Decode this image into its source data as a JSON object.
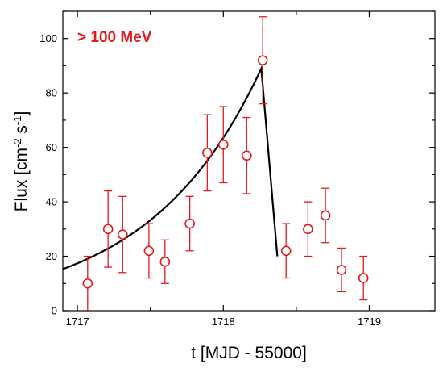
{
  "chart_data": {
    "type": "scatter",
    "title": "",
    "annotation": "> 100 MeV",
    "xlabel": "t [MJD - 55000]",
    "ylabel_parts": {
      "base": "Flux [cm",
      "exp1": "-2",
      "mid": " s",
      "exp2": "-1",
      "end": "]"
    },
    "xlim": [
      1716.9,
      1719.45
    ],
    "ylim": [
      0,
      110
    ],
    "x_ticks": [
      "1717",
      "1718",
      "1719"
    ],
    "x_tick_values": [
      1717,
      1718,
      1719
    ],
    "x_minor_step": 0.5,
    "y_ticks": [
      "0",
      "20",
      "40",
      "60",
      "80",
      "100"
    ],
    "y_tick_values": [
      0,
      20,
      40,
      60,
      80,
      100
    ],
    "y_minor_step": 10,
    "grid": false,
    "colors": {
      "data": "#e31a1c",
      "model": "#000000",
      "annotation": "#e31a1c"
    },
    "series": [
      {
        "marker": "open-circle",
        "points": [
          {
            "x": 1717.07,
            "y": 10,
            "err": 10
          },
          {
            "x": 1717.21,
            "y": 30,
            "err": 14
          },
          {
            "x": 1717.31,
            "y": 28,
            "err": 14
          },
          {
            "x": 1717.49,
            "y": 22,
            "err": 10
          },
          {
            "x": 1717.6,
            "y": 18,
            "err": 8
          },
          {
            "x": 1717.77,
            "y": 32,
            "err": 10
          },
          {
            "x": 1717.89,
            "y": 58,
            "err": 14
          },
          {
            "x": 1718.0,
            "y": 61,
            "err": 14
          },
          {
            "x": 1718.16,
            "y": 57,
            "err": 14
          },
          {
            "x": 1718.27,
            "y": 92,
            "err": 16
          },
          {
            "x": 1718.43,
            "y": 22,
            "err": 10
          },
          {
            "x": 1718.58,
            "y": 30,
            "err": 10
          },
          {
            "x": 1718.7,
            "y": 35,
            "err": 10
          },
          {
            "x": 1718.81,
            "y": 15,
            "err": 8
          },
          {
            "x": 1718.96,
            "y": 12,
            "err": 8
          }
        ]
      }
    ],
    "model_curve": {
      "rise": {
        "x_start": 1716.9,
        "x_peak": 1718.26,
        "y_start": 15.3,
        "y_peak": 89
      },
      "decay": {
        "x_end": 1718.37,
        "y_end": 20
      }
    }
  }
}
